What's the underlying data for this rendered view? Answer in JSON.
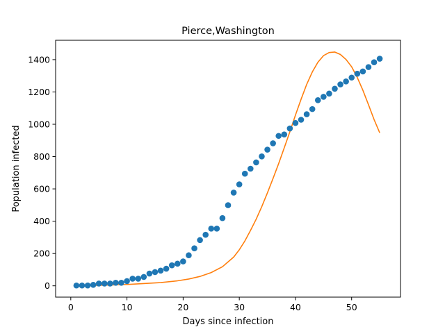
{
  "chart_data": {
    "type": "scatter",
    "title": "Pierce,Washington",
    "xlabel": "Days since infection",
    "ylabel": "Population infected",
    "xlim": [
      -2.7,
      58.7
    ],
    "ylim": [
      -70,
      1520
    ],
    "xticks": [
      0,
      10,
      20,
      30,
      40,
      50
    ],
    "yticks": [
      0,
      200,
      400,
      600,
      800,
      1000,
      1200,
      1400
    ],
    "grid": false,
    "legend": "none",
    "series": [
      {
        "type": "scatter",
        "color": "#1f77b4",
        "x": [
          1,
          2,
          3,
          4,
          5,
          6,
          7,
          8,
          9,
          10,
          11,
          12,
          13,
          14,
          15,
          16,
          17,
          18,
          19,
          20,
          21,
          22,
          23,
          24,
          25,
          26,
          27,
          28,
          29,
          30,
          31,
          32,
          33,
          34,
          35,
          36,
          37,
          38,
          39,
          40,
          41,
          42,
          43,
          44,
          45,
          46,
          47,
          48,
          49,
          50,
          51,
          52,
          53,
          54,
          55
        ],
        "y": [
          2,
          2,
          2,
          6,
          14,
          14,
          14,
          19,
          19,
          29,
          44,
          44,
          55,
          76,
          85,
          94,
          106,
          127,
          137,
          151,
          189,
          232,
          283,
          316,
          354,
          354,
          419,
          499,
          577,
          628,
          694,
          725,
          764,
          801,
          843,
          882,
          928,
          937,
          974,
          1008,
          1028,
          1062,
          1094,
          1149,
          1170,
          1190,
          1220,
          1247,
          1265,
          1289,
          1313,
          1327,
          1354,
          1384,
          1406
        ]
      },
      {
        "type": "line",
        "color": "#ff7f0e",
        "x": [
          1,
          3,
          5,
          7,
          10,
          13,
          16,
          19,
          21,
          23,
          25,
          27,
          29,
          30,
          31,
          32,
          33,
          34,
          35,
          36,
          37,
          38,
          39,
          40,
          41,
          42,
          43,
          44,
          45,
          46,
          47,
          48,
          49,
          50,
          51,
          52,
          53,
          54,
          55
        ],
        "y": [
          1,
          2,
          3,
          5,
          8,
          14,
          20,
          31,
          42,
          58,
          82,
          118,
          178,
          223,
          278,
          343,
          412,
          490,
          575,
          664,
          756,
          854,
          953,
          1057,
          1155,
          1247,
          1324,
          1384,
          1425,
          1444,
          1447,
          1432,
          1401,
          1356,
          1290,
          1211,
          1121,
          1029,
          947
        ]
      }
    ]
  }
}
